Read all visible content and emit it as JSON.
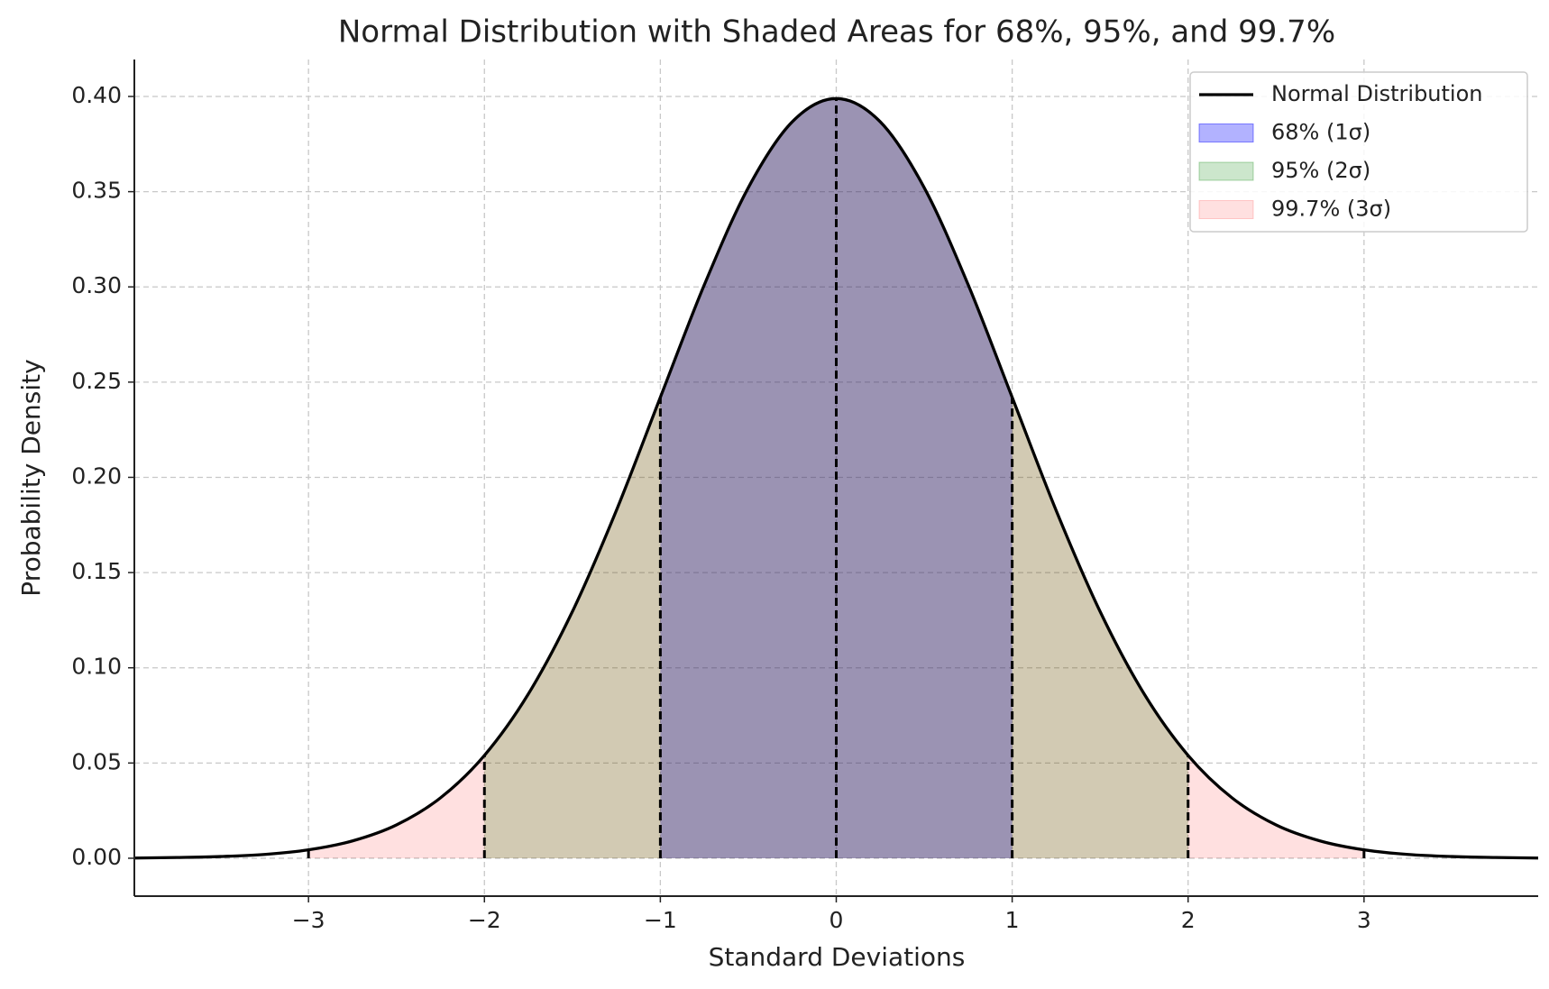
{
  "chart_data": {
    "type": "line",
    "title": "Normal Distribution with Shaded Areas for 68%, 95%, and 99.7%",
    "x_label": "Standard Deviations",
    "y_label": "Probability Density",
    "x": [
      -4,
      -3.75,
      -3.5,
      -3.25,
      -3,
      -2.75,
      -2.5,
      -2.25,
      -2,
      -1.75,
      -1.5,
      -1.25,
      -1,
      -0.75,
      -0.5,
      -0.25,
      0,
      0.25,
      0.5,
      0.75,
      1,
      1.25,
      1.5,
      1.75,
      2,
      2.25,
      2.5,
      2.75,
      3,
      3.25,
      3.5,
      3.75,
      4
    ],
    "series": [
      {
        "name": "Normal Distribution",
        "color": "#000000",
        "values": [
          0.0001,
          0.0004,
          0.0009,
          0.002,
          0.0044,
          0.0091,
          0.0175,
          0.0317,
          0.054,
          0.0863,
          0.1295,
          0.1826,
          0.242,
          0.3011,
          0.3521,
          0.3867,
          0.3989,
          0.3867,
          0.3521,
          0.3011,
          0.242,
          0.1826,
          0.1295,
          0.0863,
          0.054,
          0.0317,
          0.0175,
          0.0091,
          0.0044,
          0.002,
          0.0009,
          0.0004,
          0.0001
        ]
      }
    ],
    "areas": [
      {
        "name": "68% (1σ)",
        "color": "#0000ff",
        "opacity": 0.3,
        "range": [
          -1,
          1
        ]
      },
      {
        "name": "95% (2σ)",
        "color": "#008000",
        "opacity": 0.2,
        "range": [
          -2,
          2
        ]
      },
      {
        "name": "99.7% (3σ)",
        "color": "#ff0000",
        "opacity": 0.12,
        "range": [
          -3,
          3
        ]
      }
    ],
    "vlines": [
      -3,
      -2,
      -1,
      0,
      1,
      2,
      3
    ],
    "xlim": [
      -3.99,
      3.99
    ],
    "ylim": [
      -0.0199,
      0.4194
    ],
    "xticks": [
      {
        "value": -3,
        "label": "−3"
      },
      {
        "value": -2,
        "label": "−2"
      },
      {
        "value": -1,
        "label": "−1"
      },
      0,
      1,
      2,
      3
    ],
    "yticks": [
      {
        "value": 0,
        "label": "0.00"
      },
      {
        "value": 0.05,
        "label": "0.05"
      },
      {
        "value": 0.1,
        "label": "0.10"
      },
      {
        "value": 0.15,
        "label": "0.15"
      },
      {
        "value": 0.2,
        "label": "0.20"
      },
      {
        "value": 0.25,
        "label": "0.25"
      },
      {
        "value": 0.3,
        "label": "0.30"
      },
      {
        "value": 0.35,
        "label": "0.35"
      },
      {
        "value": 0.4,
        "label": "0.40"
      }
    ],
    "grid": true,
    "legend": "upper right"
  }
}
